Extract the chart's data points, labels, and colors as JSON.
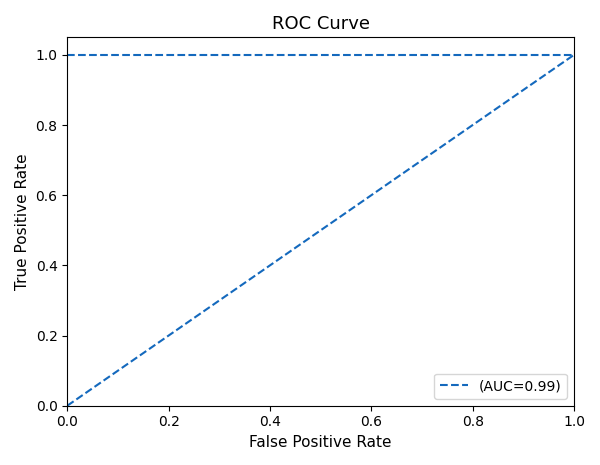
{
  "title": "ROC Curve",
  "xlabel": "False Positive Rate",
  "ylabel": "True Positive Rate",
  "legend_label": "(AUC=0.99)",
  "line_color": "#1469bd",
  "line_style": "--",
  "line_width": 1.5,
  "xlim": [
    0.0,
    1.0
  ],
  "ylim": [
    0.0,
    1.05
  ],
  "xticks": [
    0.0,
    0.2,
    0.4,
    0.6,
    0.8,
    1.0
  ],
  "yticks": [
    0.0,
    0.2,
    0.4,
    0.6,
    0.8,
    1.0
  ],
  "fpr1": [
    0.0,
    1.0
  ],
  "tpr1": [
    1.0,
    1.0
  ],
  "fpr2": [
    0.0,
    1.0
  ],
  "tpr2": [
    0.0,
    1.0
  ],
  "figsize": [
    6.0,
    4.65
  ],
  "dpi": 100,
  "title_fontsize": 13,
  "axis_label_fontsize": 11,
  "tick_fontsize": 10,
  "legend_loc": "lower right",
  "legend_fontsize": 10
}
